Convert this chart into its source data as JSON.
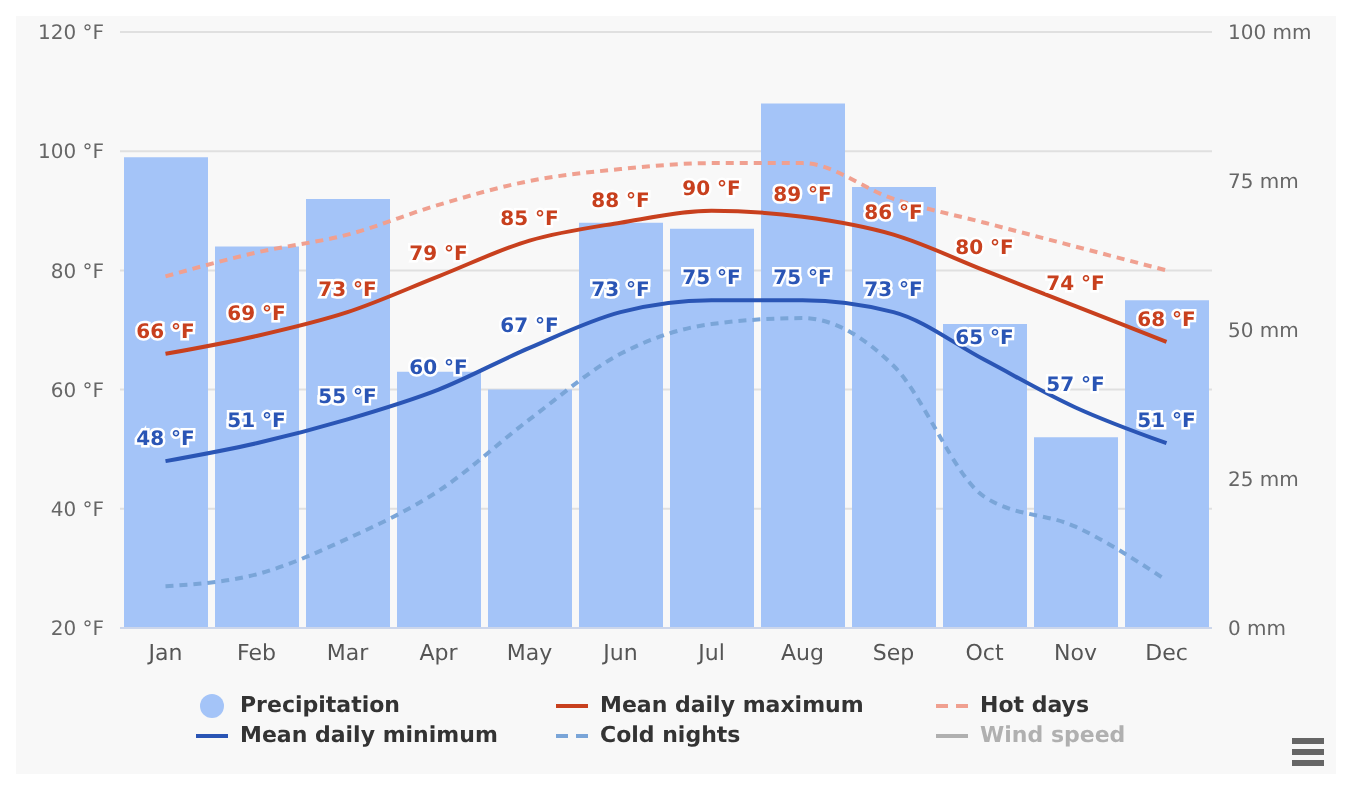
{
  "chart_data": {
    "type": "bar",
    "categories": [
      "Jan",
      "Feb",
      "Mar",
      "Apr",
      "May",
      "Jun",
      "Jul",
      "Aug",
      "Sep",
      "Oct",
      "Nov",
      "Dec"
    ],
    "series": [
      {
        "name": "Precipitation",
        "axis": "y2",
        "color": "#a4c4f8",
        "values": [
          79,
          64,
          72,
          43,
          40,
          68,
          67,
          88,
          74,
          51,
          32,
          55
        ]
      },
      {
        "name": "Mean daily maximum",
        "type": "line",
        "color": "#c8401e",
        "line_style": "solid",
        "values": [
          66,
          69,
          73,
          79,
          85,
          88,
          90,
          89,
          86,
          80,
          74,
          68
        ],
        "value_labels": [
          "66 °F",
          "69 °F",
          "73 °F",
          "79 °F",
          "85 °F",
          "88 °F",
          "90 °F",
          "89 °F",
          "86 °F",
          "80 °F",
          "74 °F",
          "68 °F"
        ]
      },
      {
        "name": "Hot days",
        "type": "line",
        "color": "#f0a090",
        "line_style": "dashed",
        "values": [
          79,
          83,
          86,
          91,
          95,
          97,
          98,
          98,
          92,
          88,
          84,
          80
        ]
      },
      {
        "name": "Mean daily minimum",
        "type": "line",
        "color": "#2a55b5",
        "line_style": "solid",
        "values": [
          48,
          51,
          55,
          60,
          67,
          73,
          75,
          75,
          73,
          65,
          57,
          51
        ],
        "value_labels": [
          "48 °F",
          "51 °F",
          "55 °F",
          "60 °F",
          "67 °F",
          "73 °F",
          "75 °F",
          "75 °F",
          "73 °F",
          "65 °F",
          "57 °F",
          "51 °F"
        ]
      },
      {
        "name": "Cold nights",
        "type": "line",
        "color": "#7aa5d8",
        "line_style": "dashed",
        "values": [
          27,
          29,
          35,
          43,
          55,
          66,
          71,
          72,
          64,
          42,
          37,
          28
        ]
      },
      {
        "name": "Wind speed",
        "type": "line",
        "color": "#b0b0b0",
        "line_style": "solid",
        "values": [
          null,
          null,
          null,
          null,
          null,
          null,
          null,
          null,
          null,
          null,
          null,
          null
        ]
      }
    ],
    "ylim": [
      20,
      120
    ],
    "yticks": [
      {
        "value": 20,
        "label": "20 °F"
      },
      {
        "value": 40,
        "label": "40 °F"
      },
      {
        "value": 60,
        "label": "60 °F"
      },
      {
        "value": 80,
        "label": "80 °F"
      },
      {
        "value": 100,
        "label": "100 °F"
      },
      {
        "value": 120,
        "label": "120 °F"
      }
    ],
    "y2lim": [
      0,
      100
    ],
    "y2ticks": [
      {
        "value": 0,
        "label": "0 mm"
      },
      {
        "value": 25,
        "label": "25 mm"
      },
      {
        "value": 50,
        "label": "50 mm"
      },
      {
        "value": 75,
        "label": "75 mm"
      },
      {
        "value": 100,
        "label": "100 mm"
      }
    ],
    "grid": "y",
    "legend": "bottom",
    "marker": "none"
  }
}
